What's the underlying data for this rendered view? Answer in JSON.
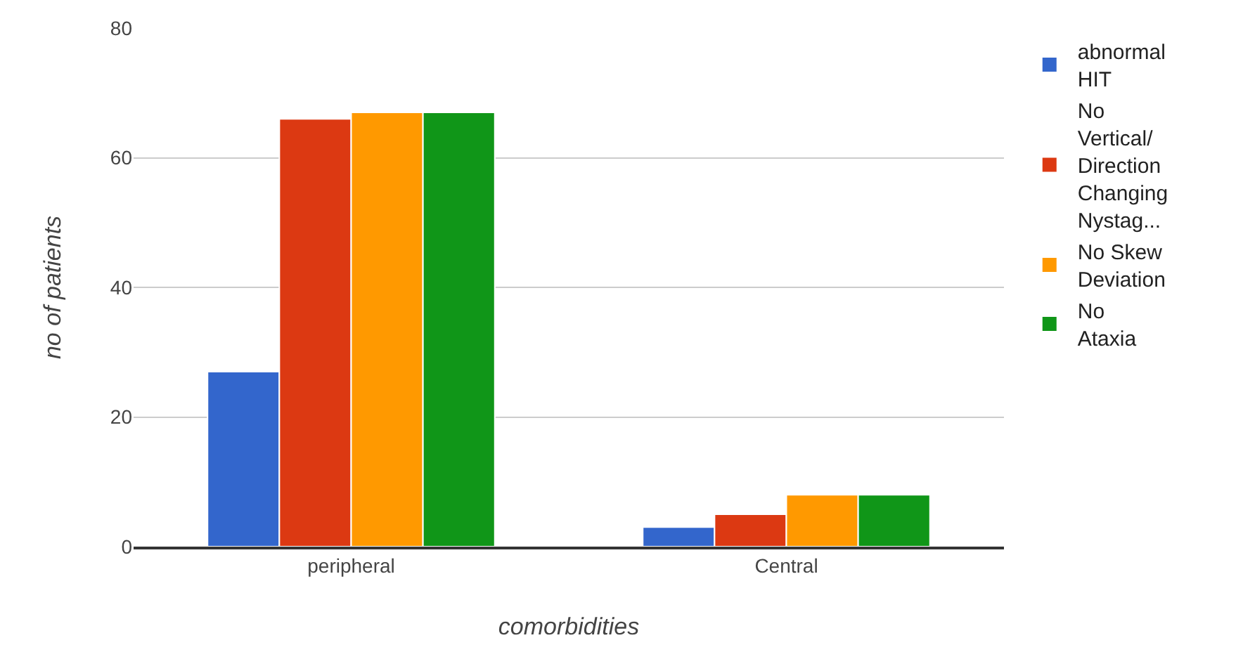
{
  "chart_data": {
    "type": "bar",
    "xlabel": "comorbidities",
    "ylabel": "no of patients",
    "categories": [
      "peripheral",
      "Central"
    ],
    "series": [
      {
        "name": "abnormal HIT",
        "color": "#3366cc",
        "values": [
          27,
          3
        ]
      },
      {
        "name": "No Vertical/Direction Changing Nystag...",
        "color": "#dc3912",
        "values": [
          66,
          5
        ]
      },
      {
        "name": "No Skew Deviation",
        "color": "#ff9900",
        "values": [
          67,
          8
        ]
      },
      {
        "name": "No Ataxia",
        "color": "#109618",
        "values": [
          67,
          8
        ]
      }
    ],
    "ylim": [
      0,
      80
    ],
    "yticks": [
      0,
      20,
      40,
      60,
      80
    ],
    "grid": "y",
    "legend": "top right"
  }
}
